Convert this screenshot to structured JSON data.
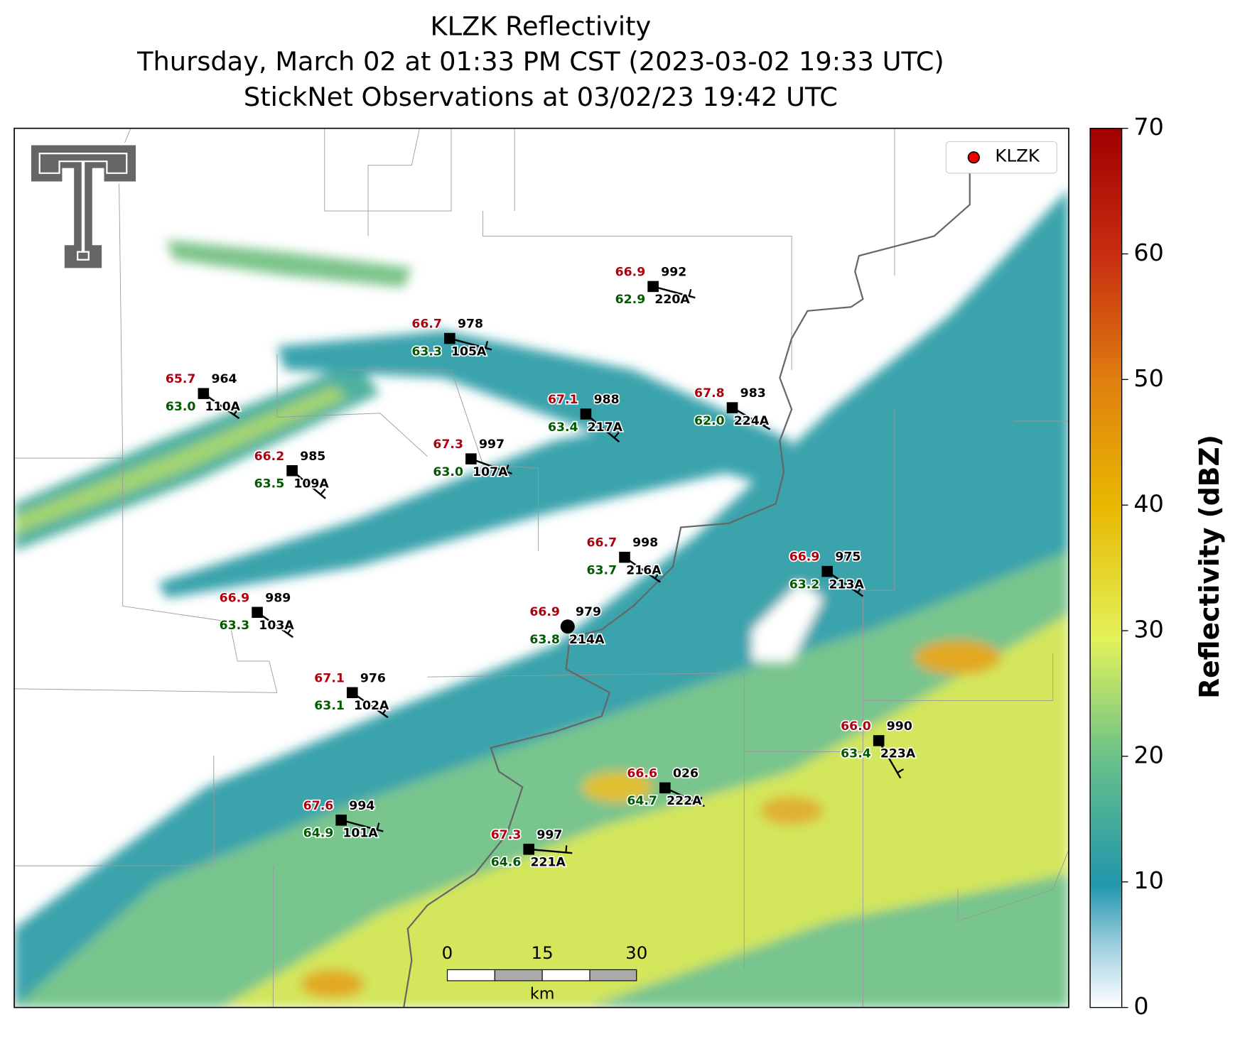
{
  "title": [
    "KLZK Reflectivity",
    "Thursday, March 02 at 01:33 PM CST (2023-03-02 19:33 UTC)",
    "StickNet Observations at 03/02/23 19:42 UTC"
  ],
  "legend": [
    "KLZK"
  ],
  "colorbar": {
    "label": "Reflectivity (dBZ)",
    "lim": [
      0,
      70
    ],
    "ticks": [
      0,
      10,
      20,
      30,
      40,
      50,
      60,
      70
    ]
  },
  "scale_bar": {
    "ticks": [
      "0",
      "15",
      "30"
    ],
    "unit": "km"
  },
  "stations": [
    {
      "id": "220A",
      "temperature": "66.9",
      "pressure": "992",
      "dewpoint": "62.9"
    },
    {
      "id": "105A",
      "temperature": "66.7",
      "pressure": "978",
      "dewpoint": "63.3"
    },
    {
      "id": "110A",
      "temperature": "65.7",
      "pressure": "964",
      "dewpoint": "63.0"
    },
    {
      "id": "217A",
      "temperature": "67.1",
      "pressure": "988",
      "dewpoint": "63.4"
    },
    {
      "id": "224A",
      "temperature": "67.8",
      "pressure": "983",
      "dewpoint": "62.0"
    },
    {
      "id": "107A",
      "temperature": "67.3",
      "pressure": "997",
      "dewpoint": "63.0"
    },
    {
      "id": "109A",
      "temperature": "66.2",
      "pressure": "985",
      "dewpoint": "63.5"
    },
    {
      "id": "216A",
      "temperature": "66.7",
      "pressure": "998",
      "dewpoint": "63.7"
    },
    {
      "id": "213A",
      "temperature": "66.9",
      "pressure": "975",
      "dewpoint": "63.2"
    },
    {
      "id": "103A",
      "temperature": "66.9",
      "pressure": "989",
      "dewpoint": "63.3"
    },
    {
      "id": "214A",
      "temperature": "66.9",
      "pressure": "979",
      "dewpoint": "63.8"
    },
    {
      "id": "102A",
      "temperature": "67.1",
      "pressure": "976",
      "dewpoint": "63.1"
    },
    {
      "id": "223A",
      "temperature": "66.0",
      "pressure": "990",
      "dewpoint": "63.4"
    },
    {
      "id": "222A",
      "temperature": "66.6",
      "pressure": "026",
      "dewpoint": "64.7"
    },
    {
      "id": "101A",
      "temperature": "67.6",
      "pressure": "994",
      "dewpoint": "64.9"
    },
    {
      "id": "221A",
      "temperature": "67.3",
      "pressure": "997",
      "dewpoint": "64.6"
    }
  ]
}
